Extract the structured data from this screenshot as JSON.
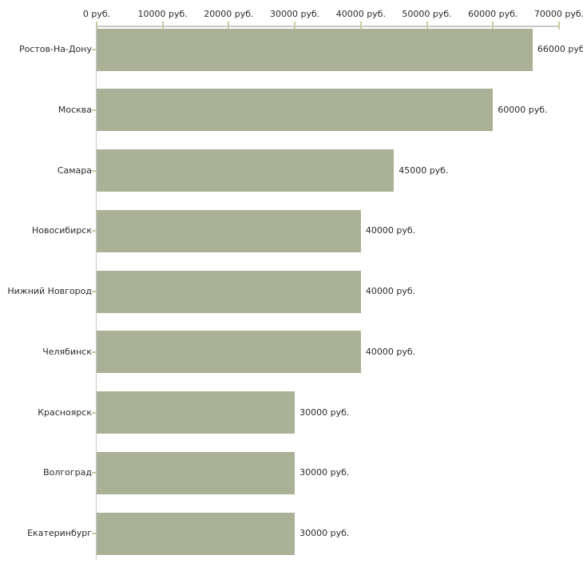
{
  "chart_data": {
    "type": "bar",
    "orientation": "horizontal",
    "title": "",
    "xlabel": "",
    "ylabel": "",
    "categories": [
      "Ростов-На-Дону",
      "Москва",
      "Самара",
      "Новосибирск",
      "Нижний Новгород",
      "Челябинск",
      "Красноярск",
      "Волгоград",
      "Екатеринбург"
    ],
    "values": [
      66000,
      60000,
      45000,
      40000,
      40000,
      40000,
      30000,
      30000,
      30000
    ],
    "value_labels": [
      "66000 руб",
      "60000 руб.",
      "45000 руб.",
      "40000 руб.",
      "40000 руб.",
      "40000 руб.",
      "30000 руб.",
      "30000 руб.",
      "30000 руб."
    ],
    "x_ticks": [
      0,
      10000,
      20000,
      30000,
      40000,
      50000,
      60000,
      70000
    ],
    "x_tick_labels": [
      "0 руб.",
      "10000 руб.",
      "20000 руб.",
      "30000 руб.",
      "40000 руб.",
      "50000 руб.",
      "60000 руб.",
      "70000 руб."
    ],
    "xlim": [
      0,
      70000
    ],
    "grid": false,
    "legend": null
  },
  "colors": {
    "bar": "#abb196",
    "axis_line": "#c9c9c9",
    "tick": "#cdc8a0",
    "text": "#2b2b2b",
    "background": "#ffffff"
  }
}
